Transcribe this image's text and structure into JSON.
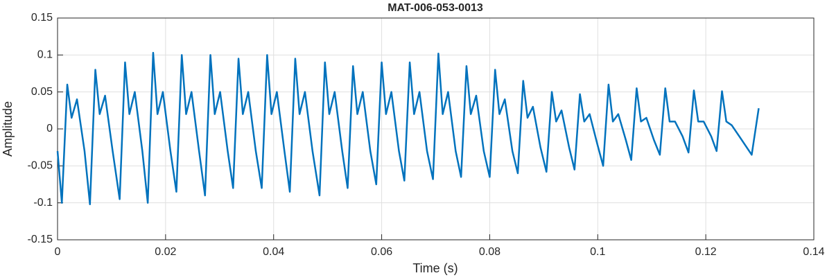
{
  "chart_data": {
    "type": "line",
    "title": "MAT-006-053-0013",
    "xlabel": "Time (s)",
    "ylabel": "Amplitude",
    "color": "#0072bd",
    "grid": true,
    "xlim": [
      0,
      0.14
    ],
    "xticks": [
      0,
      0.02,
      0.04,
      0.06,
      0.08,
      0.1,
      0.12,
      0.14
    ],
    "ylim": [
      -0.15,
      0.15
    ],
    "yticks": [
      -0.15,
      -0.1,
      -0.05,
      0,
      0.05,
      0.1,
      0.15
    ],
    "x": [
      0,
      0.0008,
      0.0018,
      0.0026,
      0.0036,
      0.005,
      0.006,
      0.007,
      0.0078,
      0.0088,
      0.0102,
      0.0115,
      0.0125,
      0.0133,
      0.0143,
      0.0157,
      0.0167,
      0.0177,
      0.0185,
      0.0195,
      0.0209,
      0.022,
      0.023,
      0.0238,
      0.0248,
      0.0262,
      0.0273,
      0.0283,
      0.0291,
      0.0301,
      0.0315,
      0.0325,
      0.0335,
      0.0343,
      0.0353,
      0.0367,
      0.0378,
      0.0388,
      0.0396,
      0.0406,
      0.042,
      0.043,
      0.044,
      0.0448,
      0.0458,
      0.0472,
      0.0485,
      0.0495,
      0.0503,
      0.0513,
      0.0527,
      0.0537,
      0.0547,
      0.0555,
      0.0565,
      0.0579,
      0.059,
      0.06,
      0.0608,
      0.0618,
      0.0632,
      0.0642,
      0.0652,
      0.066,
      0.067,
      0.0684,
      0.0695,
      0.0705,
      0.0713,
      0.0723,
      0.0737,
      0.0747,
      0.0757,
      0.0765,
      0.0775,
      0.0789,
      0.08,
      0.081,
      0.0818,
      0.0828,
      0.0842,
      0.0852,
      0.0862,
      0.087,
      0.088,
      0.0894,
      0.0905,
      0.0915,
      0.0923,
      0.0933,
      0.0947,
      0.0957,
      0.0967,
      0.0975,
      0.0985,
      0.0999,
      0.101,
      0.102,
      0.1028,
      0.1038,
      0.1052,
      0.1062,
      0.1072,
      0.108,
      0.109,
      0.1104,
      0.1115,
      0.1125,
      0.1133,
      0.1143,
      0.1157,
      0.1168,
      0.1178,
      0.1186,
      0.1196,
      0.121,
      0.122,
      0.123,
      0.1238,
      0.1248,
      0.1262,
      0.1285,
      0.1298
    ],
    "values": [
      -0.03,
      -0.1,
      0.06,
      0.015,
      0.04,
      -0.03,
      -0.102,
      0.08,
      0.02,
      0.045,
      -0.03,
      -0.095,
      0.09,
      0.02,
      0.05,
      -0.03,
      -0.1,
      0.103,
      0.02,
      0.05,
      -0.03,
      -0.085,
      0.1,
      0.02,
      0.05,
      -0.03,
      -0.09,
      0.1,
      0.02,
      0.05,
      -0.03,
      -0.08,
      0.095,
      0.02,
      0.05,
      -0.03,
      -0.08,
      0.1,
      0.02,
      0.05,
      -0.03,
      -0.085,
      0.095,
      0.02,
      0.05,
      -0.03,
      -0.09,
      0.09,
      0.02,
      0.05,
      -0.03,
      -0.08,
      0.085,
      0.02,
      0.05,
      -0.03,
      -0.075,
      0.09,
      0.02,
      0.05,
      -0.03,
      -0.07,
      0.09,
      0.02,
      0.05,
      -0.03,
      -0.068,
      0.102,
      0.02,
      0.05,
      -0.03,
      -0.065,
      0.085,
      0.02,
      0.045,
      -0.03,
      -0.065,
      0.08,
      0.02,
      0.04,
      -0.03,
      -0.06,
      0.065,
      0.015,
      0.03,
      -0.025,
      -0.058,
      0.05,
      0.01,
      0.025,
      -0.025,
      -0.055,
      0.047,
      0.01,
      0.02,
      -0.02,
      -0.05,
      0.06,
      0.01,
      0.02,
      -0.015,
      -0.042,
      0.055,
      0.01,
      0.015,
      -0.015,
      -0.035,
      0.055,
      0.01,
      0.01,
      -0.01,
      -0.032,
      0.052,
      0.01,
      0.01,
      -0.01,
      -0.03,
      0.051,
      0.01,
      0.005,
      -0.01,
      -0.035,
      0.028
    ]
  }
}
